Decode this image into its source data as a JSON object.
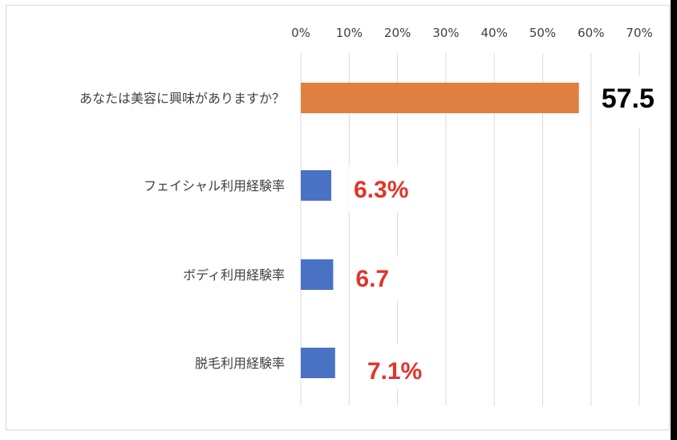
{
  "chart_data": {
    "type": "bar",
    "orientation": "horizontal",
    "title": "",
    "xlabel": "",
    "ylabel": "",
    "xlim": [
      0,
      70
    ],
    "x_ticks": [
      "0%",
      "10%",
      "20%",
      "30%",
      "40%",
      "50%",
      "60%",
      "70%"
    ],
    "x_axis_position": "top",
    "grid": true,
    "legend": "none",
    "categories": [
      "あなたは美容に興味がありますか？",
      "フェイシャル利用経験率",
      "ボディ利用経験率",
      "脱毛利用経験率"
    ],
    "values": [
      57.5,
      6.3,
      6.7,
      7.1
    ],
    "data_labels": [
      "57.5",
      "6.3%",
      "6.7",
      "7.1%"
    ],
    "bar_colors": [
      "#e07f42",
      "#4a72c4",
      "#4a72c4",
      "#4a72c4"
    ],
    "label_colors": [
      "#000000",
      "#e0352b",
      "#e0352b",
      "#e0352b"
    ]
  }
}
